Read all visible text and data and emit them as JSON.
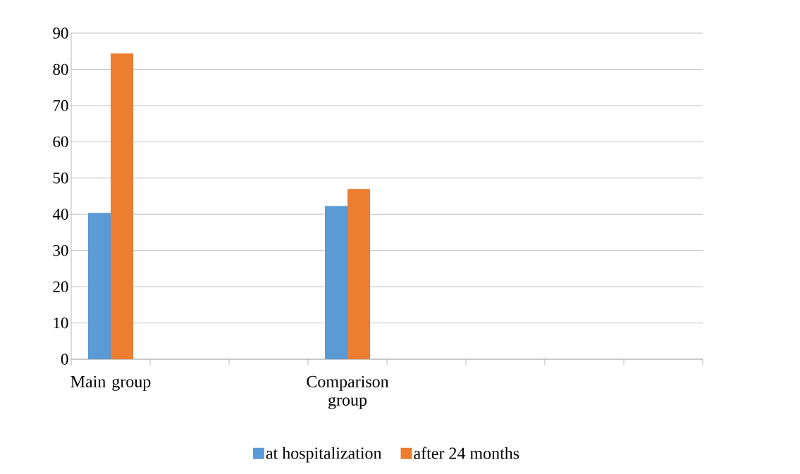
{
  "chart_data": {
    "type": "bar",
    "categories": [
      "Main group",
      null,
      null,
      "Comparison group",
      null,
      null,
      null,
      null
    ],
    "series": [
      {
        "name": "at hospitalization",
        "color": "#5b9bd5",
        "values": [
          40.4,
          null,
          null,
          42.3,
          null,
          null,
          null,
          null
        ]
      },
      {
        "name": "after 24 months",
        "color": "#ed7d31",
        "values": [
          84.4,
          null,
          null,
          47.0,
          null,
          null,
          null,
          null
        ]
      }
    ],
    "ylim": [
      0,
      90
    ],
    "yticks": [
      0,
      10,
      20,
      30,
      40,
      50,
      60,
      70,
      80,
      90
    ],
    "grid": "y",
    "legend": "bottom"
  }
}
